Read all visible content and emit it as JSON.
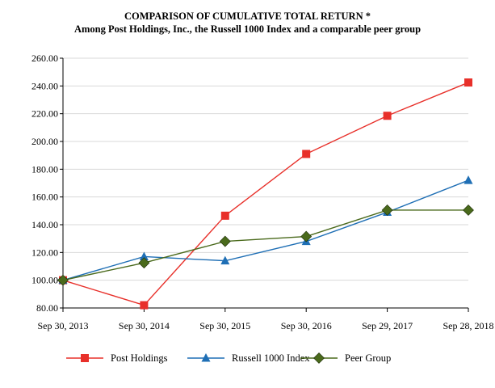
{
  "chart_data": {
    "type": "line",
    "title": "COMPARISON OF CUMULATIVE TOTAL RETURN *",
    "subtitle": "Among Post Holdings, Inc., the Russell 1000 Index and a comparable peer group",
    "categories": [
      "Sep 30, 2013",
      "Sep 30, 2014",
      "Sep 30, 2015",
      "Sep 30, 2016",
      "Sep 29, 2017",
      "Sep 28, 2018"
    ],
    "ylim": [
      80,
      260
    ],
    "yticks": [
      "80.00",
      "100.00",
      "120.00",
      "140.00",
      "160.00",
      "180.00",
      "200.00",
      "220.00",
      "240.00",
      "260.00"
    ],
    "grid": true,
    "legend_position": "bottom",
    "series": [
      {
        "name": "Post Holdings",
        "color": "#e8302a",
        "marker": "square",
        "values": [
          100,
          82,
          146.5,
          191,
          218.5,
          242.5
        ]
      },
      {
        "name": "Russell 1000 Index",
        "color": "#1f6fb5",
        "marker": "triangle",
        "values": [
          100,
          117,
          114,
          128,
          149,
          172
        ]
      },
      {
        "name": "Peer Group",
        "color": "#4a6a1c",
        "marker": "diamond",
        "values": [
          100,
          112.5,
          128,
          131.5,
          150.5,
          150.5
        ]
      }
    ]
  }
}
